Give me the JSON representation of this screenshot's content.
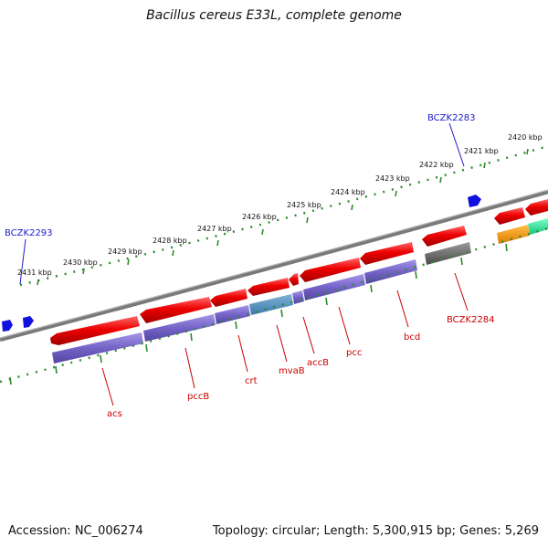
{
  "title": "Bacillus cereus E33L, complete genome",
  "accession": "Accession: NC_006274",
  "topology": "Topology: circular; Length: 5,300,915 bp; Genes: 5,269",
  "kbp_labels": [
    "2431 kbp",
    "2430 kbp",
    "2429 kbp",
    "2428 kbp",
    "2427 kbp",
    "2426 kbp",
    "2425 kbp",
    "2424 kbp",
    "2423 kbp",
    "2422 kbp",
    "2421 kbp",
    "2420 kbp"
  ],
  "blue_labels": [
    "BCZK2293",
    "BCZK2283"
  ],
  "gene_labels": [
    "acs",
    "pccB",
    "crt",
    "mvaB",
    "accB",
    "pcc",
    "bcd",
    "BCZK2284"
  ],
  "colors": {
    "gene_red": "#e00000",
    "feature_purple": "#7b68c8",
    "backbone": "#777777",
    "scale": "#2e8b2e",
    "blue_label": "#1a1acc",
    "red_label": "#cc0000"
  }
}
